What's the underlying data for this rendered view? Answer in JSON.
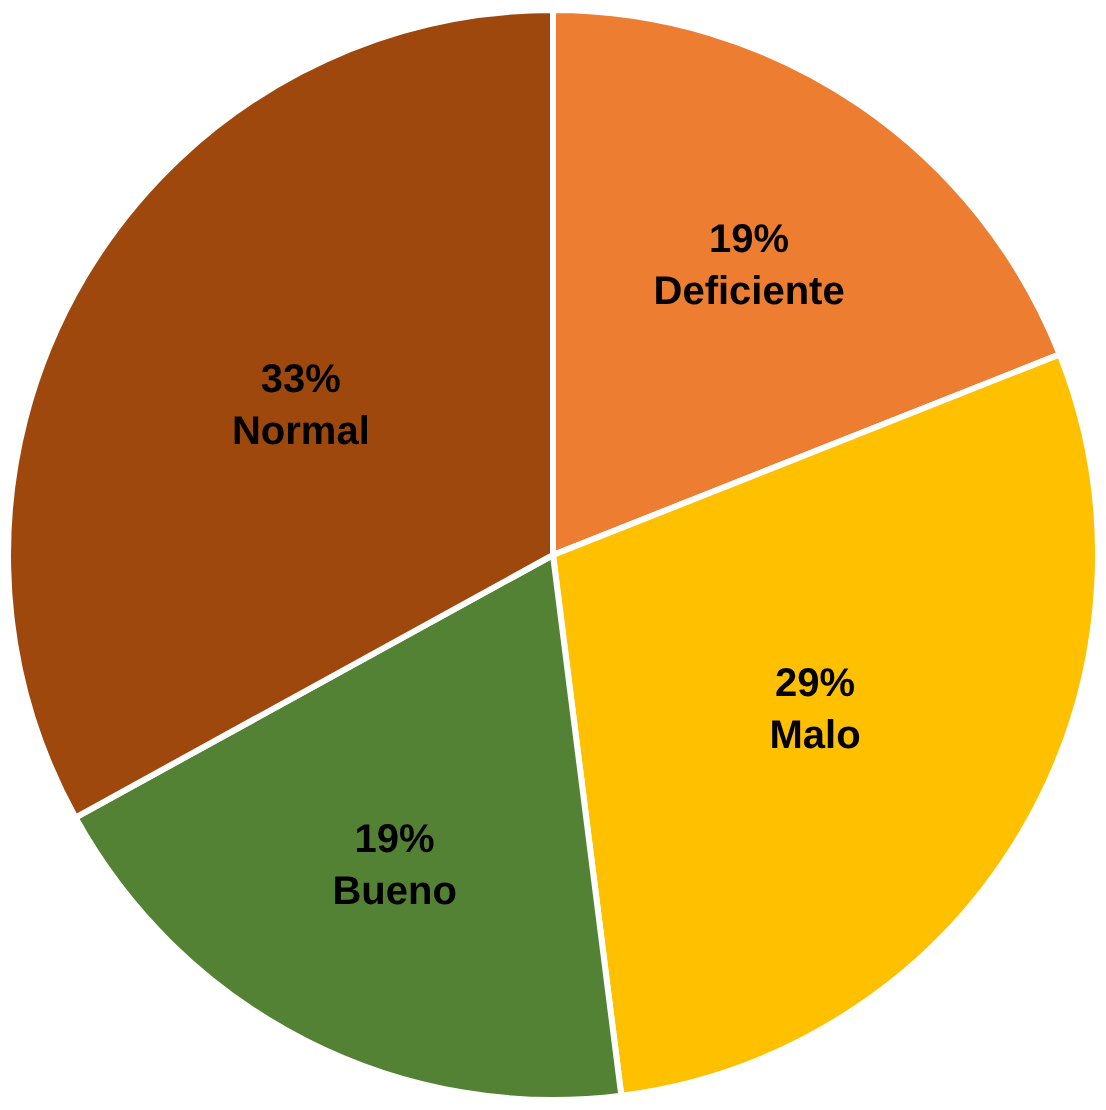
{
  "chart_data": {
    "type": "pie",
    "categories": [
      "Deficiente",
      "Malo",
      "Bueno",
      "Normal"
    ],
    "values": [
      19,
      29,
      19,
      33
    ],
    "value_labels": [
      "19%",
      "29%",
      "19%",
      "33%"
    ],
    "colors": [
      "#ed7d31",
      "#ffc000",
      "#548235",
      "#9e480e"
    ],
    "legend": false
  }
}
